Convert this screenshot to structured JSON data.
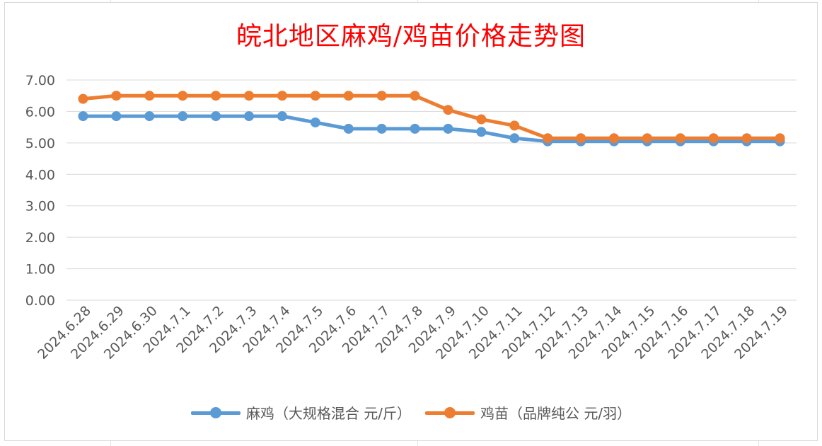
{
  "chart_data": {
    "type": "line",
    "title": "皖北地区麻鸡/鸡苗价格走势图",
    "categories": [
      "2024.6.28",
      "2024.6.29",
      "2024.6.30",
      "2024.7.1",
      "2024.7.2",
      "2024.7.3",
      "2024.7.4",
      "2024.7.5",
      "2024.7.6",
      "2024.7.7",
      "2024.7.8",
      "2024.7.9",
      "2024.7.10",
      "2024.7.11",
      "2024.7.12",
      "2024.7.13",
      "2024.7.14",
      "2024.7.15",
      "2024.7.16",
      "2024.7.17",
      "2024.7.18",
      "2024.7.19"
    ],
    "series": [
      {
        "name": "麻鸡（大规格混合 元/斤）",
        "color": "#5B9BD5",
        "values": [
          5.85,
          5.85,
          5.85,
          5.85,
          5.85,
          5.85,
          5.85,
          5.65,
          5.45,
          5.45,
          5.45,
          5.45,
          5.35,
          5.15,
          5.05,
          5.05,
          5.05,
          5.05,
          5.05,
          5.05,
          5.05,
          5.05
        ]
      },
      {
        "name": "鸡苗（品牌纯公 元/羽）",
        "color": "#ED7D31",
        "values": [
          6.4,
          6.5,
          6.5,
          6.5,
          6.5,
          6.5,
          6.5,
          6.5,
          6.5,
          6.5,
          6.5,
          6.05,
          5.75,
          5.55,
          5.15,
          5.15,
          5.15,
          5.15,
          5.15,
          5.15,
          5.15,
          5.15
        ]
      }
    ],
    "ylim": [
      0,
      7
    ],
    "yticks": [
      "0.00",
      "1.00",
      "2.00",
      "3.00",
      "4.00",
      "5.00",
      "6.00",
      "7.00"
    ],
    "grid": true,
    "legend": "bottom-center"
  }
}
